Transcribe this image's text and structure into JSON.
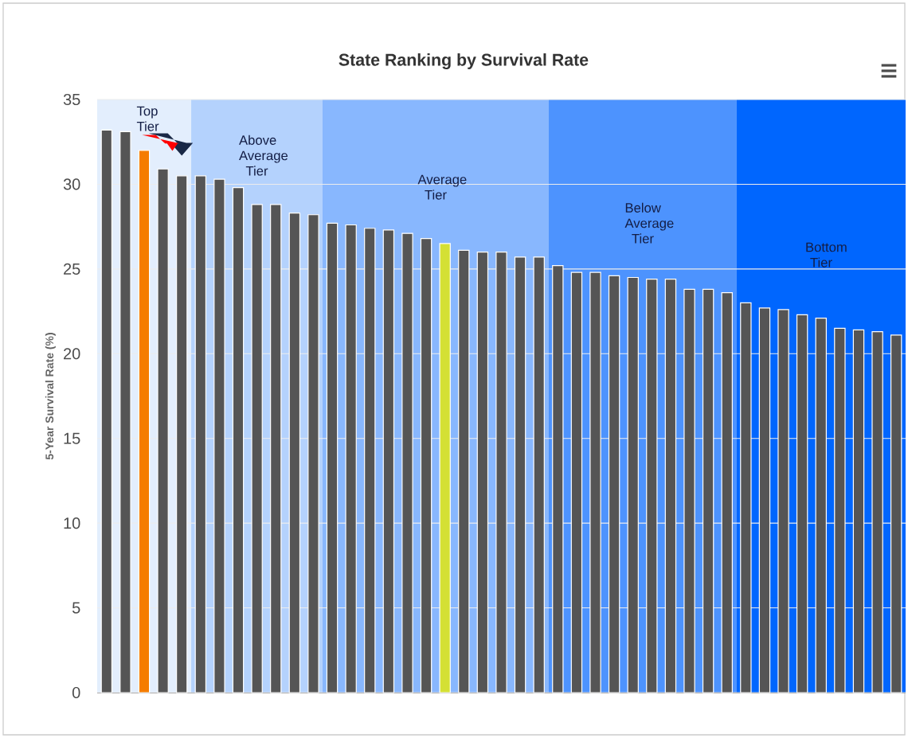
{
  "chart_data": {
    "type": "bar",
    "title": "State Ranking by Survival Rate",
    "ylabel": "5-Year Survival Rate (%)",
    "categories": [
      null,
      null,
      null,
      null,
      null,
      null,
      null,
      null,
      null,
      null,
      null,
      null,
      null,
      null,
      null,
      null,
      null,
      null,
      null,
      null,
      null,
      null,
      null,
      null,
      null,
      null,
      null,
      null,
      null,
      null,
      null,
      null,
      null,
      null,
      null,
      null,
      null,
      null,
      null,
      null,
      null,
      null,
      null
    ],
    "values": [
      33.2,
      33.1,
      32.0,
      30.9,
      30.5,
      30.5,
      30.3,
      29.8,
      28.8,
      28.8,
      28.3,
      28.2,
      27.7,
      27.6,
      27.4,
      27.3,
      27.1,
      26.8,
      26.5,
      26.1,
      26.0,
      26.0,
      25.7,
      25.7,
      25.2,
      24.8,
      24.8,
      24.6,
      24.5,
      24.4,
      24.4,
      23.8,
      23.8,
      23.6,
      23.0,
      22.7,
      22.6,
      22.3,
      22.1,
      21.5,
      21.4,
      21.3,
      21.1
    ],
    "colors": [
      "#555555",
      "#555555",
      "#f57c00",
      "#555555",
      "#555555",
      "#555555",
      "#555555",
      "#555555",
      "#555555",
      "#555555",
      "#555555",
      "#555555",
      "#555555",
      "#555555",
      "#555555",
      "#555555",
      "#555555",
      "#555555",
      "#d4e034",
      "#555555",
      "#555555",
      "#555555",
      "#555555",
      "#555555",
      "#555555",
      "#555555",
      "#555555",
      "#555555",
      "#555555",
      "#555555",
      "#555555",
      "#555555",
      "#555555",
      "#555555",
      "#555555",
      "#555555",
      "#555555",
      "#555555",
      "#555555",
      "#555555",
      "#555555",
      "#555555",
      "#555555"
    ],
    "ylim": [
      0,
      35
    ],
    "yticks": [
      0,
      5,
      10,
      15,
      20,
      25,
      30,
      35
    ],
    "grid": "y",
    "annotations": [
      "Top Tier",
      "Above Average Tier",
      "Average Tier",
      "Below Average Tier",
      "Bottom Tier"
    ]
  }
}
